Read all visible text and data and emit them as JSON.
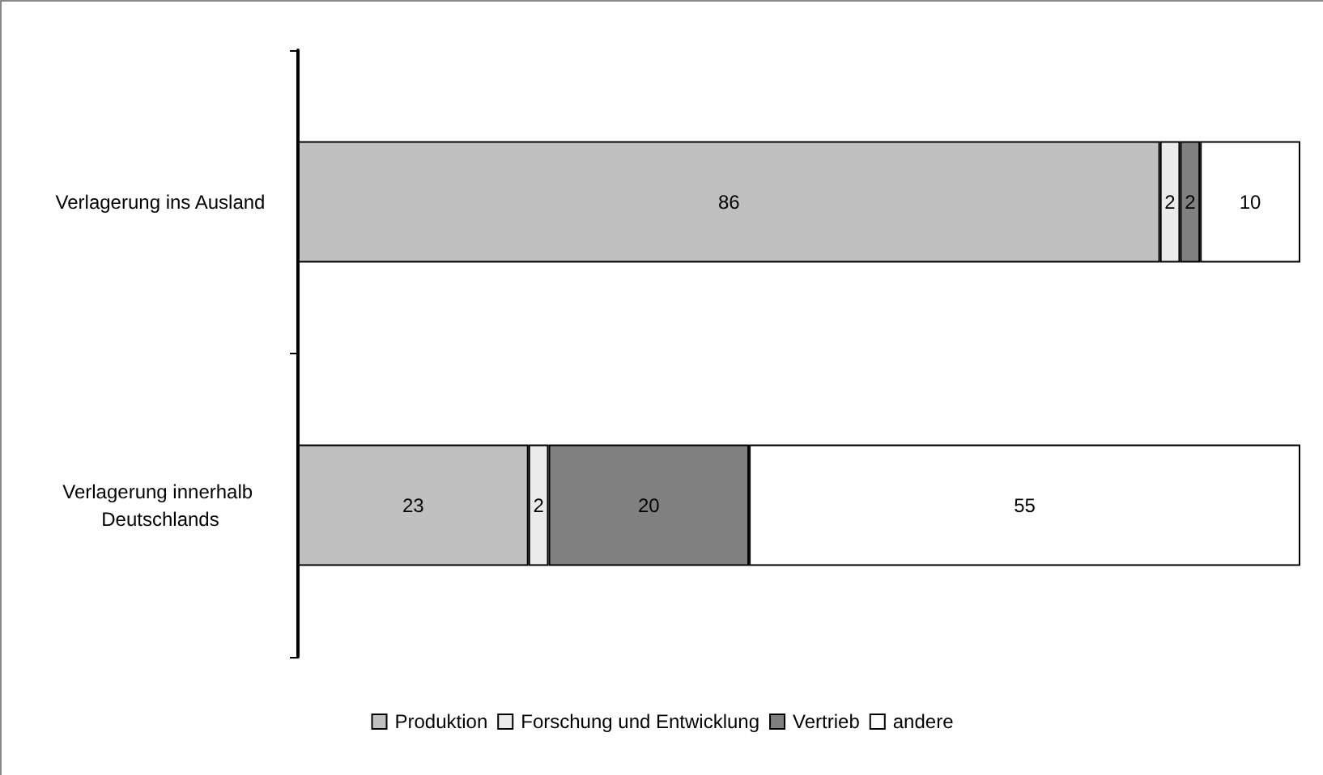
{
  "chart_data": {
    "type": "bar",
    "orientation": "horizontal",
    "stacked": true,
    "data_labels": true,
    "legend": "bottom",
    "categories": [
      "Verlagerung ins Ausland",
      "Verlagerung innerhalb Deutschlands"
    ],
    "series": [
      {
        "name": "Produktion",
        "color": "#c0c0c0",
        "values": [
          86,
          23
        ]
      },
      {
        "name": "Forschung und Entwicklung",
        "color": "#ebebeb",
        "values": [
          2,
          2
        ]
      },
      {
        "name": "Vertrieb",
        "color": "#808080",
        "values": [
          2,
          20
        ]
      },
      {
        "name": "andere",
        "color": "#ffffff",
        "values": [
          10,
          55
        ]
      }
    ]
  }
}
